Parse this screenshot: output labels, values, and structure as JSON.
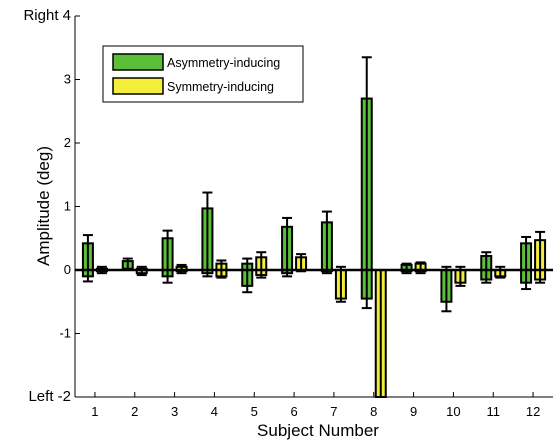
{
  "chart_data": {
    "type": "bar",
    "xlabel": "Subject Number",
    "ylabel": "Amplitude (deg)",
    "ylim": [
      -2,
      4
    ],
    "yticks": [
      -2,
      -1,
      0,
      1,
      2,
      3,
      4
    ],
    "ytick_labels": [
      "Left -2",
      "-1",
      "0",
      "1",
      "2",
      "3",
      "Right 4"
    ],
    "side_labels": {
      "top": "Right",
      "bottom": "Left"
    },
    "categories": [
      "1",
      "2",
      "3",
      "4",
      "5",
      "6",
      "7",
      "8",
      "9",
      "10",
      "11",
      "12"
    ],
    "legend_position": "top-left",
    "series": [
      {
        "name": "Asymmetry-inducing",
        "color": "#5cbf3a",
        "ranges": [
          [
            -0.1,
            0.42
          ],
          [
            0.02,
            0.14
          ],
          [
            -0.1,
            0.5
          ],
          [
            -0.05,
            0.97
          ],
          [
            -0.25,
            0.1
          ],
          [
            -0.05,
            0.68
          ],
          [
            -0.02,
            0.75
          ],
          [
            -0.45,
            2.7
          ],
          [
            -0.02,
            0.08
          ],
          [
            -0.5,
            0.0
          ],
          [
            -0.15,
            0.22
          ],
          [
            -0.2,
            0.42
          ]
        ],
        "errors": [
          [
            -0.18,
            0.55
          ],
          [
            0.0,
            0.18
          ],
          [
            -0.2,
            0.62
          ],
          [
            -0.1,
            1.22
          ],
          [
            -0.35,
            0.18
          ],
          [
            -0.1,
            0.82
          ],
          [
            -0.05,
            0.92
          ],
          [
            -0.6,
            3.35
          ],
          [
            -0.05,
            0.1
          ],
          [
            -0.65,
            0.05
          ],
          [
            -0.2,
            0.28
          ],
          [
            -0.3,
            0.52
          ]
        ]
      },
      {
        "name": "Symmetry-inducing",
        "color": "#f2ee3a",
        "ranges": [
          [
            -0.02,
            0.02
          ],
          [
            -0.05,
            0.02
          ],
          [
            -0.02,
            0.05
          ],
          [
            -0.1,
            0.1
          ],
          [
            -0.08,
            0.2
          ],
          [
            0.0,
            0.2
          ],
          [
            -0.45,
            0.0
          ],
          [
            -2.0,
            0.0
          ],
          [
            -0.02,
            0.1
          ],
          [
            -0.2,
            0.0
          ],
          [
            -0.1,
            0.0
          ],
          [
            -0.15,
            0.47
          ]
        ],
        "errors": [
          [
            -0.05,
            0.05
          ],
          [
            -0.08,
            0.05
          ],
          [
            -0.05,
            0.08
          ],
          [
            -0.12,
            0.15
          ],
          [
            -0.12,
            0.28
          ],
          [
            -0.02,
            0.25
          ],
          [
            -0.5,
            0.05
          ],
          [
            -2.0,
            0.0
          ],
          [
            -0.05,
            0.12
          ],
          [
            -0.25,
            0.05
          ],
          [
            -0.12,
            0.05
          ],
          [
            -0.2,
            0.6
          ]
        ]
      }
    ]
  }
}
